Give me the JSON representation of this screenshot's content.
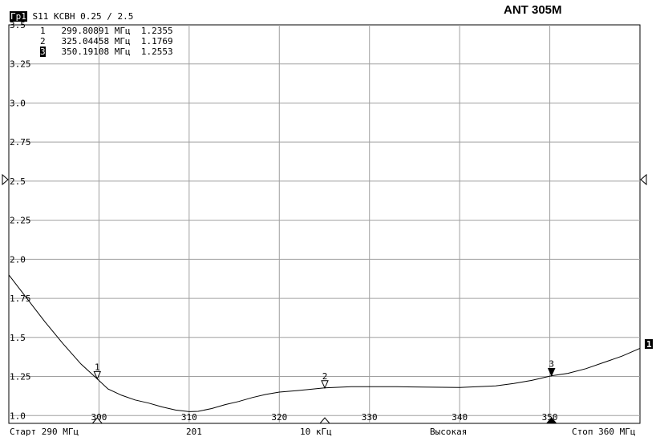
{
  "title": "ANT 305M",
  "header": {
    "trace_tag": "Гр1",
    "trace_info": "S11 КСВН 0.25 / 2.5"
  },
  "markers": [
    {
      "num": "1",
      "freq": "299.80891 МГц",
      "value": "1.2355"
    },
    {
      "num": "2",
      "freq": "325.04458 МГц",
      "value": "1.1769"
    },
    {
      "num": "3",
      "freq": "350.19108 МГц",
      "value": "1.2553",
      "active": true
    }
  ],
  "footer": {
    "start": "Старт 290 МГц",
    "points": "201",
    "ifbw": "10 кГц",
    "power": "Высокая",
    "stop": "Стоп 360 МГц"
  },
  "trace_end_label": "1",
  "chart_data": {
    "type": "line",
    "xlim": [
      290,
      360
    ],
    "ylim": [
      0.95,
      3.5
    ],
    "x_ticks": [
      300,
      310,
      320,
      330,
      340,
      350
    ],
    "x_tick_labels": [
      "300",
      "310",
      "320",
      "330",
      "340",
      "350"
    ],
    "y_ticks": [
      1.0,
      1.25,
      1.5,
      1.75,
      2.0,
      2.25,
      2.5,
      2.75,
      3.0,
      3.25,
      3.5
    ],
    "y_tick_labels": [
      "1.0",
      "1.25",
      "1.5",
      "1.75",
      "2.0",
      "2.25",
      "2.5",
      "2.75",
      "3.0",
      "3.25",
      "3.5"
    ],
    "reference_value": 2.5,
    "grid": true,
    "colors": {
      "trace": "#000000",
      "grid": "#a0a0a0"
    },
    "series": [
      {
        "x": [
          290,
          292,
          294,
          296,
          298,
          299.8,
          301,
          302.5,
          304,
          305.5,
          307,
          308.5,
          310,
          311,
          312.5,
          314,
          315.5,
          317,
          318.5,
          320,
          322,
          325,
          328,
          330,
          333,
          336,
          340,
          344,
          346,
          348,
          350.2,
          352,
          354,
          356,
          358,
          360
        ],
        "y": [
          1.9,
          1.75,
          1.6,
          1.46,
          1.33,
          1.235,
          1.17,
          1.13,
          1.1,
          1.08,
          1.055,
          1.035,
          1.025,
          1.027,
          1.045,
          1.07,
          1.09,
          1.115,
          1.135,
          1.15,
          1.16,
          1.177,
          1.185,
          1.185,
          1.185,
          1.182,
          1.18,
          1.19,
          1.205,
          1.225,
          1.255,
          1.27,
          1.3,
          1.34,
          1.38,
          1.43
        ]
      }
    ],
    "markers": [
      {
        "label": "1",
        "x": 299.80891,
        "y": 1.2355,
        "active": false
      },
      {
        "label": "2",
        "x": 325.04458,
        "y": 1.1769,
        "active": false
      },
      {
        "label": "3",
        "x": 350.19108,
        "y": 1.2553,
        "active": true
      }
    ]
  }
}
